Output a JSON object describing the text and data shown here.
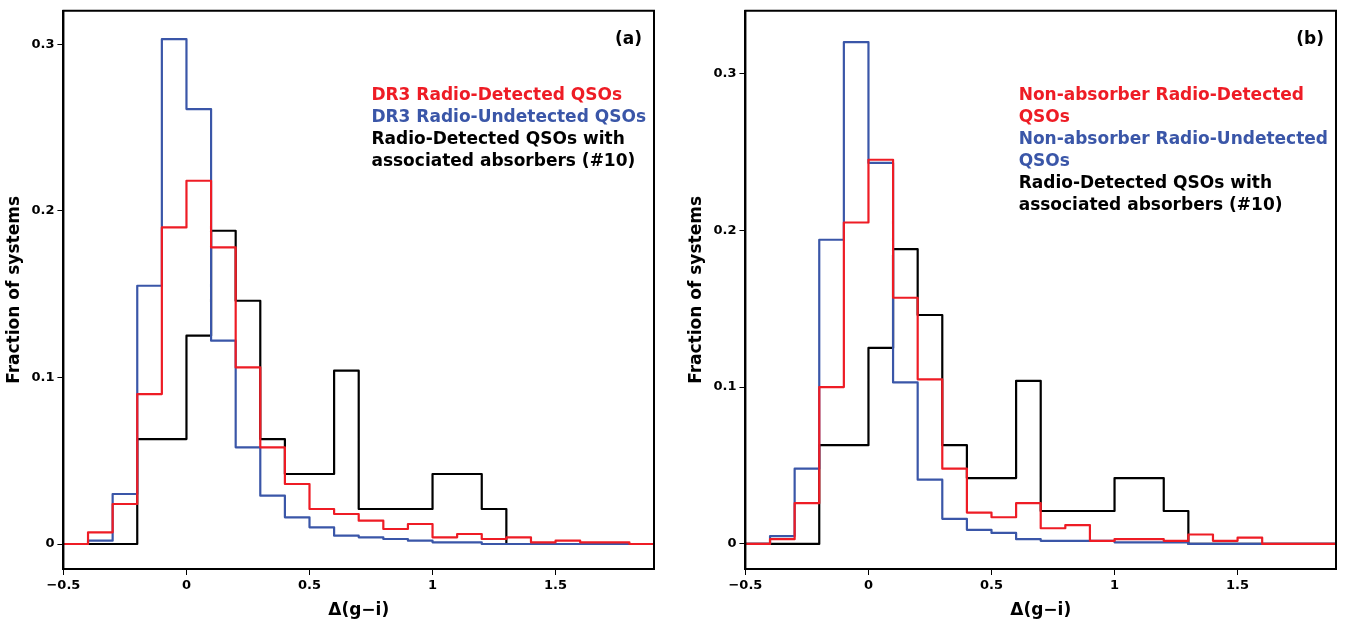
{
  "chart_data": [
    {
      "type": "histogram",
      "xlabel": "Δ(g−i)",
      "ylabel": "Fraction of systems",
      "annotations": [
        "(a)"
      ],
      "legend": "top right",
      "grid": false,
      "xlim": [
        -0.5,
        1.9
      ],
      "xticks": [
        -0.5,
        0,
        0.5,
        1,
        1.5
      ],
      "ylim": [
        -0.015,
        0.32
      ],
      "yticks": [
        0,
        0.1,
        0.2,
        0.3
      ],
      "bins": [
        -0.5,
        -0.4,
        -0.3,
        -0.2,
        -0.1,
        0,
        0.1,
        0.2,
        0.3,
        0.4,
        0.5,
        0.6,
        0.7,
        0.8,
        0.9,
        1.0,
        1.1,
        1.2,
        1.3,
        1.4,
        1.5,
        1.6,
        1.7,
        1.8,
        1.9
      ],
      "series": [
        {
          "name": "DR3 Radio-Detected QSOs",
          "color": "#ee1c25",
          "values": [
            0,
            0.007,
            0.024,
            0.09,
            0.19,
            0.218,
            0.178,
            0.106,
            0.058,
            0.036,
            0.021,
            0.018,
            0.014,
            0.009,
            0.012,
            0.004,
            0.006,
            0.003,
            0.004,
            0.001,
            0.002,
            0.001,
            0.001,
            0
          ]
        },
        {
          "name": "DR3 Radio-Undetected QSOs",
          "color": "#3a56a8",
          "values": [
            0,
            0.002,
            0.03,
            0.155,
            0.303,
            0.261,
            0.122,
            0.058,
            0.029,
            0.016,
            0.01,
            0.005,
            0.004,
            0.003,
            0.002,
            0.001,
            0.001,
            0,
            0,
            0,
            0,
            0,
            0,
            0
          ]
        },
        {
          "name": "Radio-Detected QSOs with associated absorbers (#10)",
          "color": "#000000",
          "values": [
            0,
            0,
            0,
            0.063,
            0.063,
            0.125,
            0.188,
            0.146,
            0.063,
            0.042,
            0.042,
            0.104,
            0.021,
            0.021,
            0.021,
            0.042,
            0.042,
            0.021,
            0,
            0,
            0,
            0,
            0,
            0
          ]
        }
      ]
    },
    {
      "type": "histogram",
      "xlabel": "Δ(g−i)",
      "ylabel": "Fraction of systems",
      "annotations": [
        "(b)"
      ],
      "legend": "top right",
      "grid": false,
      "xlim": [
        -0.5,
        1.9
      ],
      "xticks": [
        -0.5,
        0,
        0.5,
        1,
        1.5
      ],
      "ylim": [
        -0.016,
        0.34
      ],
      "yticks": [
        0,
        0.1,
        0.2,
        0.3
      ],
      "bins": [
        -0.5,
        -0.4,
        -0.3,
        -0.2,
        -0.1,
        0,
        0.1,
        0.2,
        0.3,
        0.4,
        0.5,
        0.6,
        0.7,
        0.8,
        0.9,
        1.0,
        1.1,
        1.2,
        1.3,
        1.4,
        1.5,
        1.6,
        1.7,
        1.8,
        1.9
      ],
      "series": [
        {
          "name": "Non-absorber Radio-Detected QSOs",
          "color": "#ee1c25",
          "values": [
            0,
            0.003,
            0.026,
            0.1,
            0.205,
            0.245,
            0.157,
            0.105,
            0.048,
            0.02,
            0.017,
            0.026,
            0.01,
            0.012,
            0.002,
            0.003,
            0.003,
            0.002,
            0.006,
            0.002,
            0.004,
            0,
            0,
            0
          ]
        },
        {
          "name": "Non-absorber Radio-Undetected QSOs",
          "color": "#3a56a8",
          "values": [
            0,
            0.005,
            0.048,
            0.194,
            0.32,
            0.243,
            0.103,
            0.041,
            0.016,
            0.009,
            0.007,
            0.003,
            0.002,
            0.002,
            0.002,
            0.001,
            0.001,
            0.001,
            0,
            0,
            0,
            0,
            0,
            0
          ]
        },
        {
          "name": "Radio-Detected QSOs with associated absorbers (#10)",
          "color": "#000000",
          "values": [
            0,
            0,
            0,
            0.063,
            0.063,
            0.125,
            0.188,
            0.146,
            0.063,
            0.042,
            0.042,
            0.104,
            0.021,
            0.021,
            0.021,
            0.042,
            0.042,
            0.021,
            0,
            0,
            0,
            0,
            0,
            0
          ]
        }
      ]
    }
  ]
}
